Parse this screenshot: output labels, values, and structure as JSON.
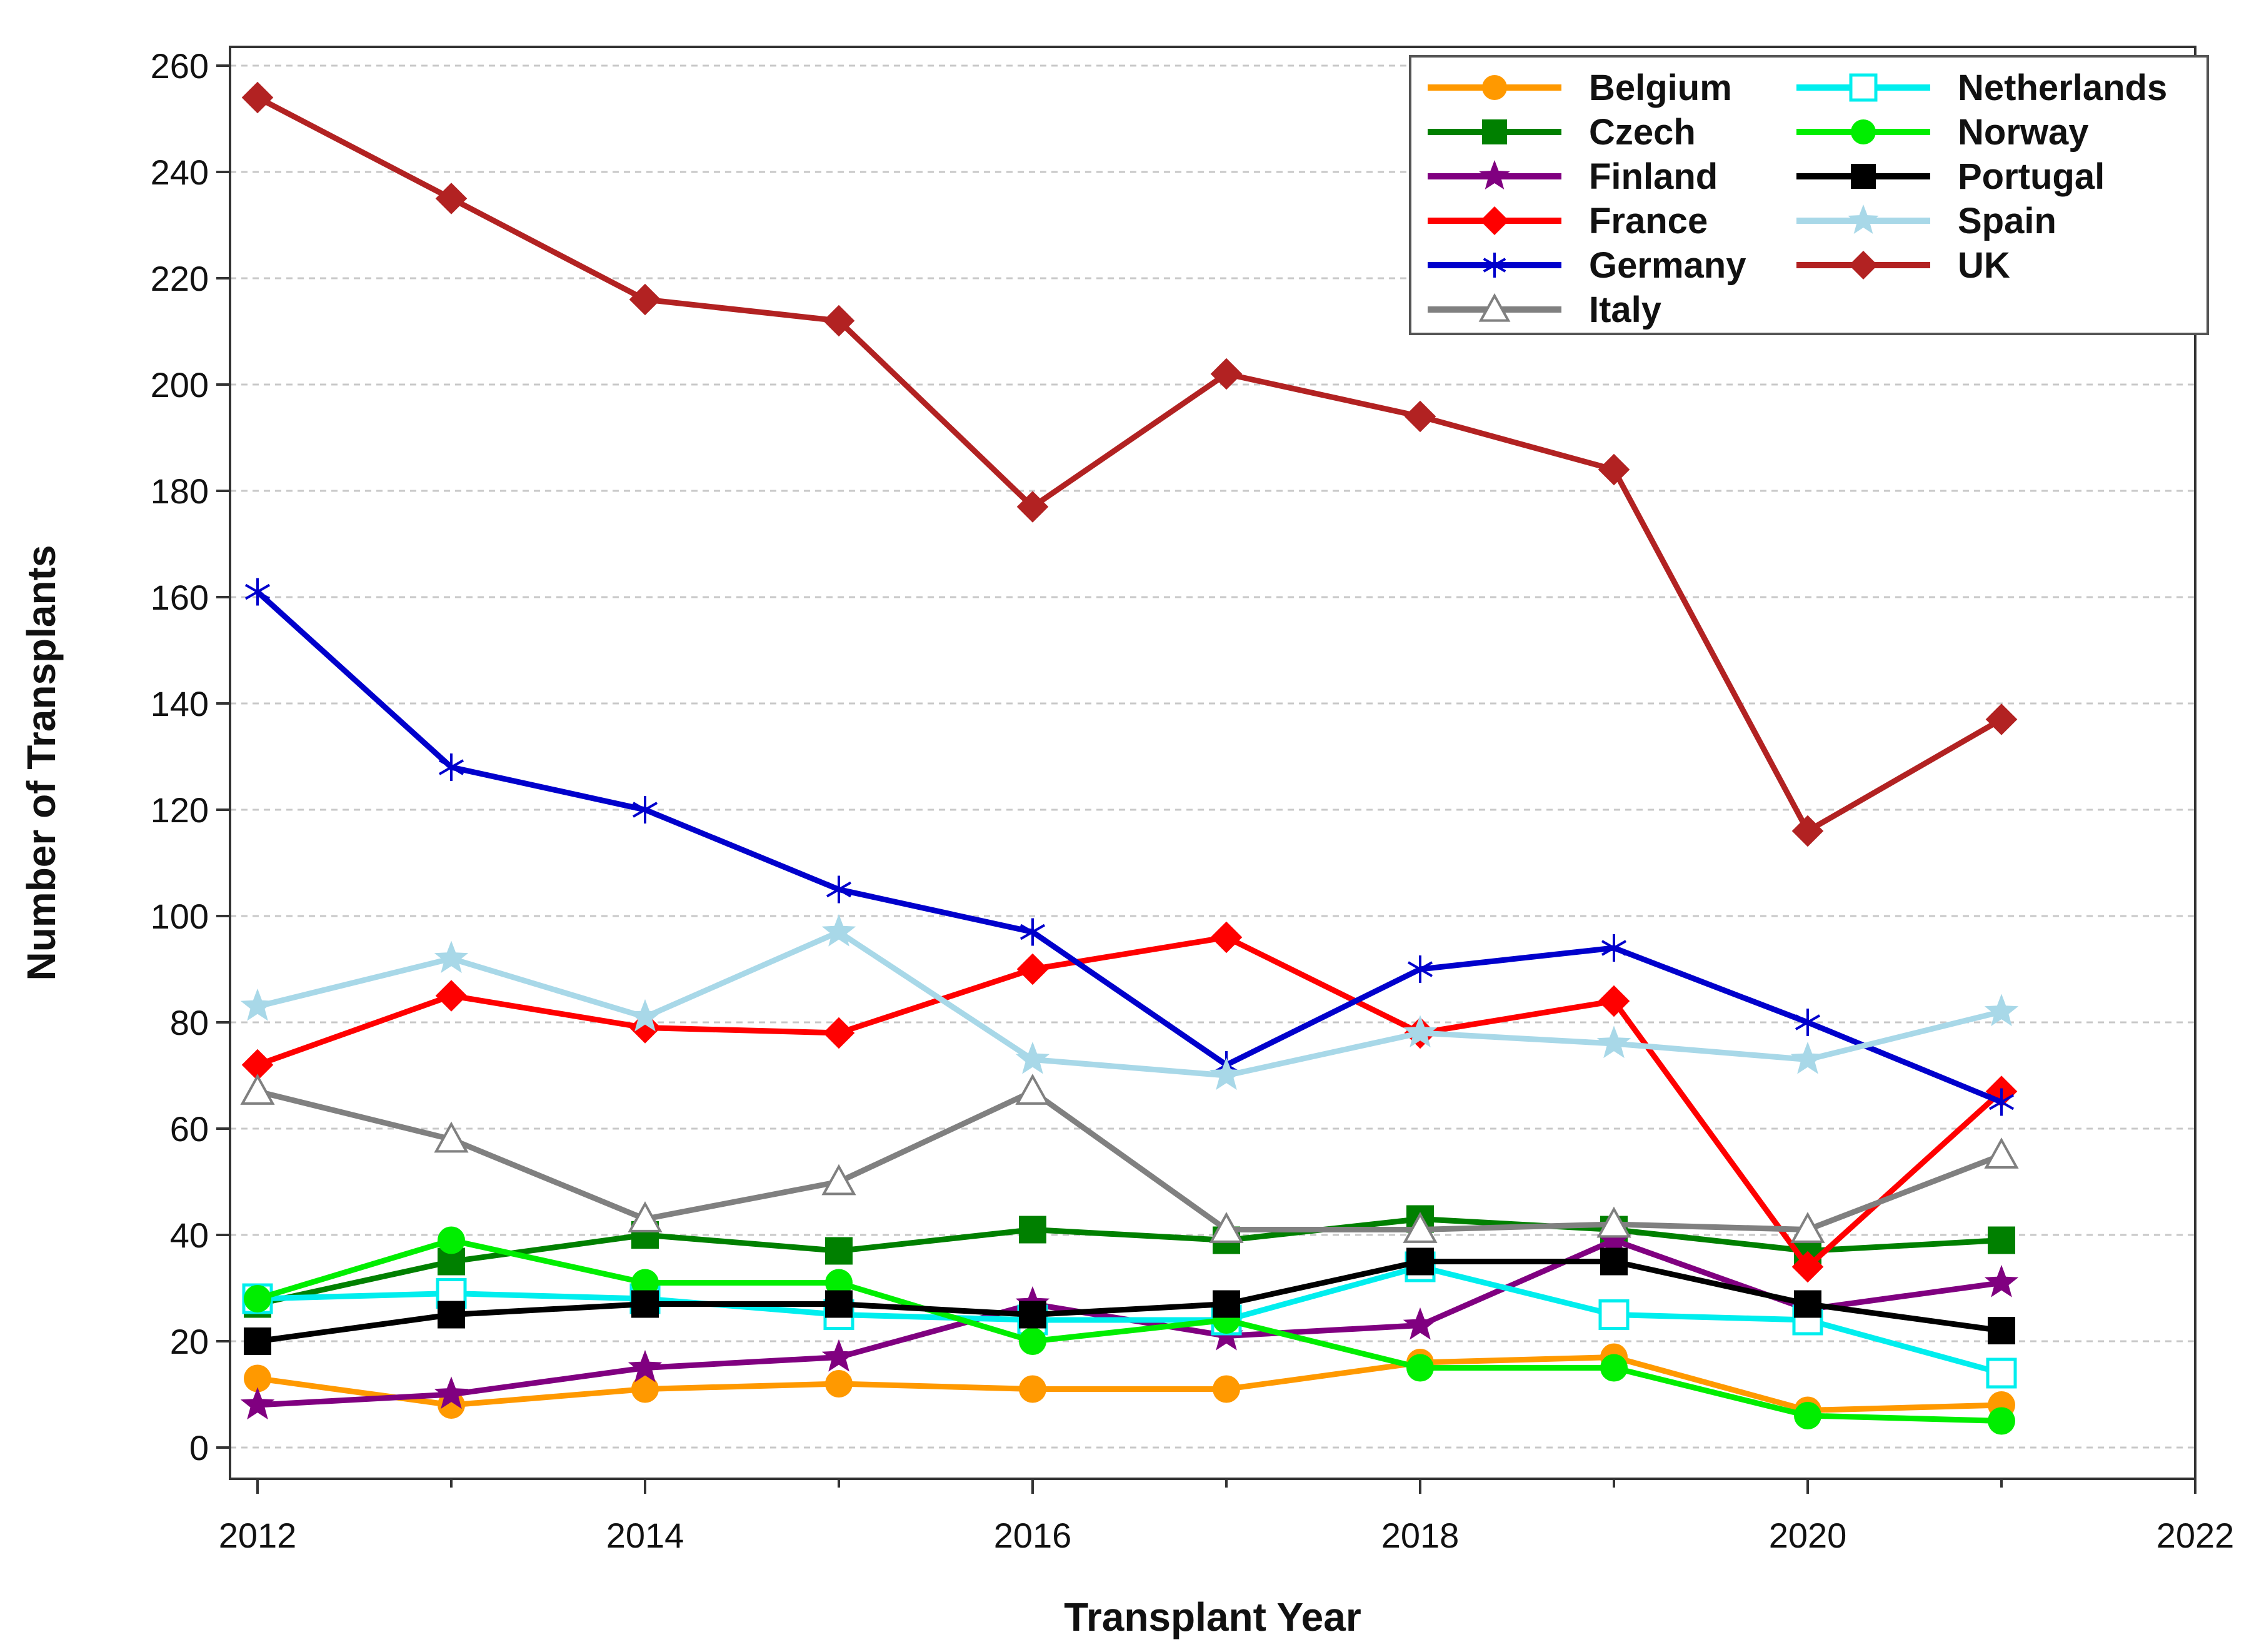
{
  "chart_data": {
    "type": "line",
    "xlabel": "Transplant Year",
    "ylabel": "Number of Transplants",
    "xlim": [
      2012,
      2022
    ],
    "ylim": [
      0,
      260
    ],
    "xticks": [
      "2012",
      "2014",
      "2016",
      "2018",
      "2020",
      "2022"
    ],
    "yticks": [
      "0",
      "20",
      "40",
      "60",
      "80",
      "100",
      "120",
      "140",
      "160",
      "180",
      "200",
      "220",
      "240",
      "260"
    ],
    "grid": "horizontal-dashed",
    "legend_position": "top-right",
    "x": [
      2012,
      2013,
      2014,
      2015,
      2016,
      2017,
      2018,
      2019,
      2020,
      2021
    ],
    "series": [
      {
        "name": "Belgium",
        "color": "#FF9900",
        "marker": "circle",
        "values": [
          13,
          8,
          11,
          12,
          11,
          11,
          16,
          17,
          7,
          8
        ]
      },
      {
        "name": "Czech",
        "color": "#008000",
        "marker": "square",
        "values": [
          27,
          35,
          40,
          37,
          41,
          39,
          43,
          41,
          37,
          39
        ]
      },
      {
        "name": "Finland",
        "color": "#800080",
        "marker": "star",
        "values": [
          8,
          10,
          15,
          17,
          27,
          21,
          23,
          39,
          26,
          31
        ]
      },
      {
        "name": "France",
        "color": "#FF0000",
        "marker": "diamond",
        "values": [
          72,
          85,
          79,
          78,
          90,
          96,
          78,
          84,
          34,
          67
        ]
      },
      {
        "name": "Germany",
        "color": "#0000CC",
        "marker": "asterisk",
        "values": [
          161,
          128,
          120,
          105,
          97,
          72,
          90,
          94,
          80,
          65
        ]
      },
      {
        "name": "Italy",
        "color": "#808080",
        "marker": "triangle-open",
        "values": [
          67,
          58,
          43,
          50,
          67,
          41,
          41,
          42,
          41,
          55
        ]
      },
      {
        "name": "Netherlands",
        "color": "#00EEEE",
        "marker": "square-open",
        "values": [
          28,
          29,
          28,
          25,
          24,
          24,
          34,
          25,
          24,
          14
        ]
      },
      {
        "name": "Norway",
        "color": "#00EE00",
        "marker": "circle",
        "values": [
          28,
          39,
          31,
          31,
          20,
          24,
          15,
          15,
          6,
          5
        ]
      },
      {
        "name": "Portugal",
        "color": "#000000",
        "marker": "square",
        "values": [
          20,
          25,
          27,
          27,
          25,
          27,
          35,
          35,
          27,
          22
        ]
      },
      {
        "name": "Spain",
        "color": "#A8D8E8",
        "marker": "star",
        "values": [
          83,
          92,
          81,
          97,
          73,
          70,
          78,
          76,
          73,
          82
        ]
      },
      {
        "name": "UK",
        "color": "#B22222",
        "marker": "diamond",
        "values": [
          254,
          235,
          216,
          212,
          177,
          202,
          194,
          184,
          116,
          137
        ]
      }
    ]
  }
}
